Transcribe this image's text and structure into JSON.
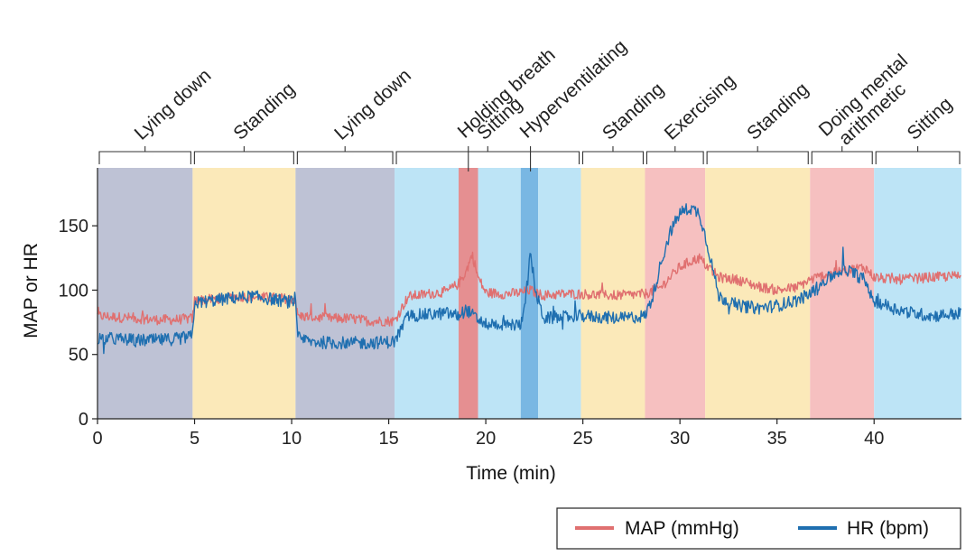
{
  "chart_data": {
    "type": "line",
    "xlabel": "Time (min)",
    "ylabel": "MAP or HR",
    "xlim": [
      0,
      44.5
    ],
    "ylim": [
      0,
      195
    ],
    "xticks": [
      0,
      5,
      10,
      15,
      20,
      25,
      30,
      35,
      40
    ],
    "yticks": [
      0,
      50,
      100,
      150
    ],
    "grid": false,
    "legend_position": "bottom-right",
    "colors": {
      "map": "#e07070",
      "hr": "#1f6fb0",
      "lying": "#bec2d5",
      "standing": "#fbe9b9",
      "sitting": "#bde4f6",
      "exercise": "#f6c0c0",
      "holding_breath": "#e58f91",
      "hyperventilating": "#79b7e3"
    },
    "phases": [
      {
        "label": "Lying down",
        "start": 0,
        "end": 4.9,
        "color": "lying"
      },
      {
        "label": "Standing",
        "start": 4.9,
        "end": 10.2,
        "color": "standing"
      },
      {
        "label": "Lying down",
        "start": 10.2,
        "end": 15.3,
        "color": "lying"
      },
      {
        "label": "Sitting",
        "start": 15.3,
        "end": 18.6,
        "color": "sitting"
      },
      {
        "label": "Holding breath",
        "start": 18.6,
        "end": 19.6,
        "color": "holding_breath"
      },
      {
        "label": "",
        "start": 19.6,
        "end": 21.8,
        "color": "sitting"
      },
      {
        "label": "Hyperventilating",
        "start": 21.8,
        "end": 22.7,
        "color": "hyperventilating"
      },
      {
        "label": "",
        "start": 22.7,
        "end": 24.9,
        "color": "sitting"
      },
      {
        "label": "Standing",
        "start": 24.9,
        "end": 28.2,
        "color": "standing"
      },
      {
        "label": "Exercising",
        "start": 28.2,
        "end": 31.3,
        "color": "exercise"
      },
      {
        "label": "Standing",
        "start": 31.3,
        "end": 36.7,
        "color": "standing"
      },
      {
        "label": "Doing mental arithmetic",
        "start": 36.7,
        "end": 40.0,
        "color": "exercise"
      },
      {
        "label": "Sitting",
        "start": 40.0,
        "end": 44.5,
        "color": "sitting"
      }
    ],
    "brackets": [
      {
        "label": "Lying down",
        "start": 0,
        "end": 4.9
      },
      {
        "label": "Standing",
        "start": 4.9,
        "end": 10.2
      },
      {
        "label": "Lying down",
        "start": 10.2,
        "end": 15.3
      },
      {
        "label": "Sitting",
        "start": 15.3,
        "end": 24.9,
        "marks": [
          19.1,
          22.3
        ]
      },
      {
        "label": "Standing",
        "start": 24.9,
        "end": 28.2
      },
      {
        "label": "Exercising",
        "start": 28.2,
        "end": 31.3
      },
      {
        "label": "Standing",
        "start": 31.3,
        "end": 36.7
      },
      {
        "label": "Doing mental\narithmetic",
        "start": 36.7,
        "end": 40.0
      },
      {
        "label": "Sitting",
        "start": 40.0,
        "end": 44.5
      }
    ],
    "phase_annotations": [
      {
        "label": "Holding breath",
        "x": 19.1
      },
      {
        "label": "Hyperventilating",
        "x": 22.3
      }
    ],
    "series": [
      {
        "name": "MAP (mmHg)",
        "color": "map",
        "noise": 4,
        "x": [
          0,
          1,
          2,
          3,
          4,
          4.9,
          5.0,
          6,
          7,
          8,
          9,
          10.2,
          10.3,
          11,
          12,
          13,
          14,
          15.3,
          16,
          17,
          18,
          18.6,
          19,
          19.3,
          19.6,
          20,
          21,
          21.8,
          22.3,
          22.7,
          23,
          24,
          25,
          26,
          27,
          28.2,
          29,
          29.5,
          30,
          30.5,
          31,
          31.3,
          32,
          33,
          34,
          35,
          36,
          36.7,
          37.5,
          38.5,
          39.5,
          40,
          41,
          42,
          43,
          44.5
        ],
        "y": [
          80,
          79,
          78,
          77,
          77,
          78,
          92,
          93,
          95,
          95,
          94,
          93,
          80,
          79,
          78,
          78,
          76,
          76,
          95,
          97,
          99,
          105,
          115,
          128,
          110,
          98,
          97,
          98,
          100,
          97,
          96,
          97,
          97,
          96,
          96,
          97,
          102,
          110,
          118,
          122,
          125,
          120,
          110,
          108,
          103,
          100,
          102,
          108,
          112,
          115,
          118,
          110,
          108,
          109,
          110,
          111
        ]
      },
      {
        "name": "HR (bpm)",
        "color": "hr",
        "noise": 5,
        "x": [
          0,
          1,
          2,
          3,
          4,
          4.9,
          5.0,
          6,
          7,
          8,
          9,
          10.2,
          10.3,
          11,
          12,
          13,
          14,
          15.3,
          16,
          17,
          18,
          18.6,
          19,
          19.5,
          20,
          21,
          21.8,
          22.1,
          22.3,
          22.6,
          23,
          24,
          25,
          26,
          27,
          28.2,
          28.6,
          29,
          29.5,
          30,
          30.5,
          31,
          31.5,
          32,
          33,
          34,
          35,
          36,
          36.7,
          37.5,
          38.5,
          39.5,
          40,
          41,
          42,
          43,
          44.5
        ],
        "y": [
          63,
          62,
          61,
          61,
          62,
          64,
          90,
          92,
          94,
          95,
          93,
          90,
          63,
          60,
          59,
          59,
          59,
          60,
          80,
          81,
          82,
          80,
          85,
          78,
          74,
          73,
          73,
          100,
          128,
          96,
          78,
          79,
          80,
          79,
          78,
          80,
          95,
          120,
          145,
          160,
          164,
          160,
          130,
          95,
          88,
          86,
          88,
          92,
          97,
          108,
          117,
          108,
          92,
          86,
          82,
          80,
          82
        ]
      }
    ]
  },
  "legend": {
    "items": [
      {
        "label": "MAP (mmHg)",
        "color": "#e07070"
      },
      {
        "label": "HR (bpm)",
        "color": "#1f6fb0"
      }
    ]
  }
}
